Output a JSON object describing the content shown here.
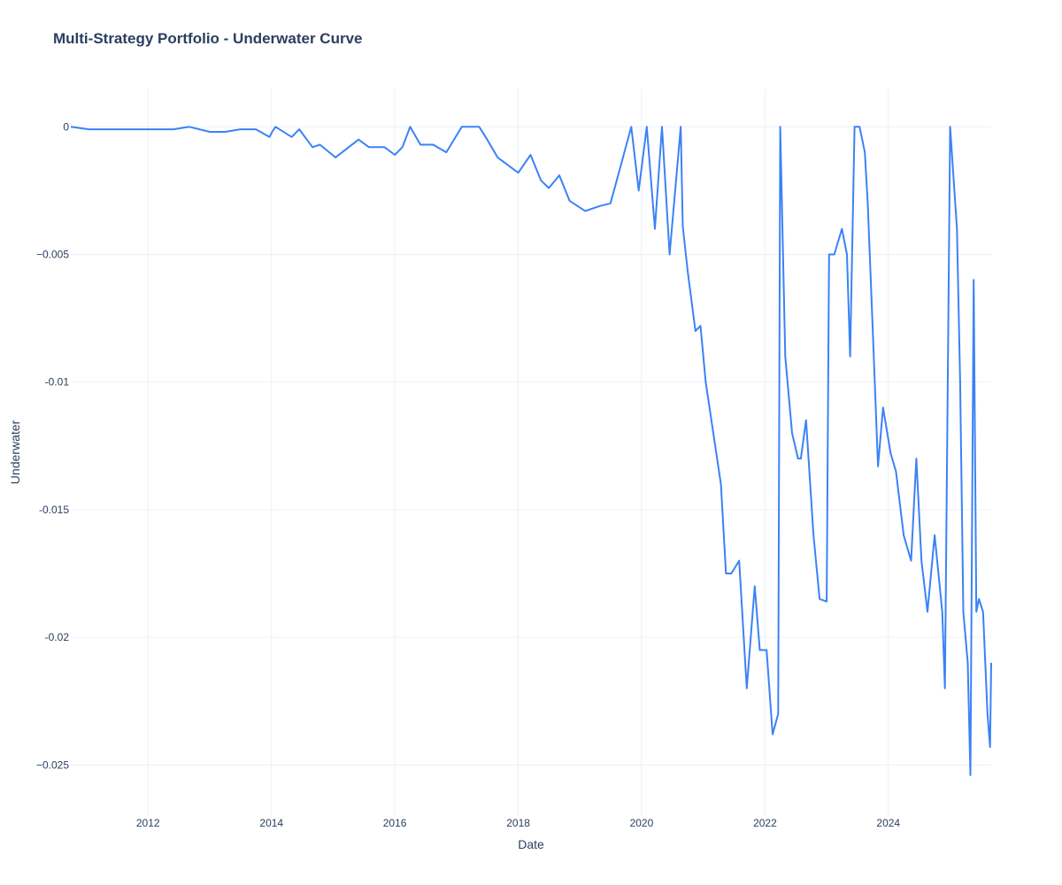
{
  "chart_data": {
    "type": "line",
    "title": "Multi-Strategy Portfolio - Underwater Curve",
    "xlabel": "Date",
    "ylabel": "Underwater",
    "x_range": [
      "2010-10-01",
      "2025-09-01"
    ],
    "ylim": [
      -0.027,
      0.0015
    ],
    "y_ticks": [
      0,
      -0.005,
      -0.01,
      -0.015,
      -0.02,
      -0.025
    ],
    "y_tick_labels": [
      "0",
      "−0.005",
      "-0.01",
      "-0.015",
      "-0.02",
      "−0.025"
    ],
    "x_ticks": [
      "2012-01-01",
      "2014-01-01",
      "2016-01-01",
      "2018-01-01",
      "2020-01-01",
      "2022-01-01",
      "2024-01-01"
    ],
    "x_tick_labels": [
      "2012",
      "2014",
      "2016",
      "2018",
      "2020",
      "2022",
      "2024"
    ],
    "grid": true,
    "legend": "none",
    "series": [
      {
        "color": "#3b82f6",
        "x": [
          "2010-10-01",
          "2011-01-15",
          "2011-06-01",
          "2011-10-01",
          "2012-02-01",
          "2012-06-01",
          "2012-09-01",
          "2013-01-01",
          "2013-04-01",
          "2013-07-01",
          "2013-10-01",
          "2013-12-20",
          "2014-01-05",
          "2014-01-25",
          "2014-05-01",
          "2014-06-15",
          "2014-09-01",
          "2014-10-15",
          "2015-01-15",
          "2015-03-15",
          "2015-06-01",
          "2015-08-01",
          "2015-11-01",
          "2016-01-01",
          "2016-02-15",
          "2016-04-01",
          "2016-06-01",
          "2016-08-15",
          "2016-11-01",
          "2017-02-01",
          "2017-05-15",
          "2017-07-01",
          "2017-09-01",
          "2018-01-01",
          "2018-03-15",
          "2018-05-15",
          "2018-07-01",
          "2018-09-01",
          "2018-11-01",
          "2019-02-01",
          "2019-05-01",
          "2019-07-01",
          "2019-09-01",
          "2019-11-01",
          "2019-12-15",
          "2020-02-01",
          "2020-03-20",
          "2020-05-01",
          "2020-06-15",
          "2020-08-20",
          "2020-09-01",
          "2020-10-01",
          "2020-11-15",
          "2020-12-15",
          "2021-01-15",
          "2021-03-01",
          "2021-04-15",
          "2021-05-15",
          "2021-06-15",
          "2021-08-01",
          "2021-09-15",
          "2021-11-01",
          "2021-12-01",
          "2022-01-10",
          "2022-02-15",
          "2022-03-20",
          "2022-04-01",
          "2022-05-01",
          "2022-06-10",
          "2022-07-15",
          "2022-08-01",
          "2022-09-01",
          "2022-10-15",
          "2022-11-20",
          "2023-01-01",
          "2023-01-15",
          "2023-02-15",
          "2023-04-01",
          "2023-05-01",
          "2023-05-20",
          "2023-06-15",
          "2023-07-15",
          "2023-08-15",
          "2023-09-01",
          "2023-10-01",
          "2023-11-01",
          "2023-12-01",
          "2024-01-15",
          "2024-02-15",
          "2024-04-01",
          "2024-05-15",
          "2024-06-15",
          "2024-07-15",
          "2024-08-20",
          "2024-10-01",
          "2024-11-15",
          "2024-12-01",
          "2025-01-01",
          "2025-02-10",
          "2025-03-01",
          "2025-03-20",
          "2025-04-15",
          "2025-05-01",
          "2025-05-20",
          "2025-06-05",
          "2025-06-20",
          "2025-07-15",
          "2025-08-10",
          "2025-08-25",
          "2025-09-01"
        ],
        "values": [
          0,
          -0.0001,
          -0.0001,
          -0.0001,
          -0.0001,
          -0.0001,
          0,
          -0.0002,
          -0.0002,
          -0.0001,
          -0.0001,
          -0.0004,
          -0.0002,
          0,
          -0.0004,
          -0.0001,
          -0.0008,
          -0.0007,
          -0.0012,
          -0.0009,
          -0.0005,
          -0.0008,
          -0.0008,
          -0.0011,
          -0.0008,
          0,
          -0.0007,
          -0.0007,
          -0.001,
          0,
          0,
          -0.0005,
          -0.0012,
          -0.0018,
          -0.0011,
          -0.0021,
          -0.0024,
          -0.0019,
          -0.0029,
          -0.0033,
          -0.0031,
          -0.003,
          -0.0015,
          0,
          -0.0025,
          0,
          -0.004,
          0,
          -0.005,
          0,
          -0.0039,
          -0.0057,
          -0.008,
          -0.0078,
          -0.01,
          -0.012,
          -0.014,
          -0.0175,
          -0.0175,
          -0.017,
          -0.022,
          -0.018,
          -0.0205,
          -0.0205,
          -0.0238,
          -0.023,
          0,
          -0.009,
          -0.012,
          -0.013,
          -0.013,
          -0.0115,
          -0.016,
          -0.0185,
          -0.0186,
          -0.005,
          -0.005,
          -0.004,
          -0.005,
          -0.009,
          0,
          0,
          -0.001,
          -0.003,
          -0.008,
          -0.0133,
          -0.011,
          -0.0128,
          -0.0135,
          -0.016,
          -0.017,
          -0.013,
          -0.017,
          -0.019,
          -0.016,
          -0.019,
          -0.022,
          0,
          -0.004,
          -0.01,
          -0.019,
          -0.021,
          -0.0254,
          -0.006,
          -0.019,
          -0.0185,
          -0.019,
          -0.023,
          -0.0243,
          -0.021
        ]
      }
    ]
  }
}
